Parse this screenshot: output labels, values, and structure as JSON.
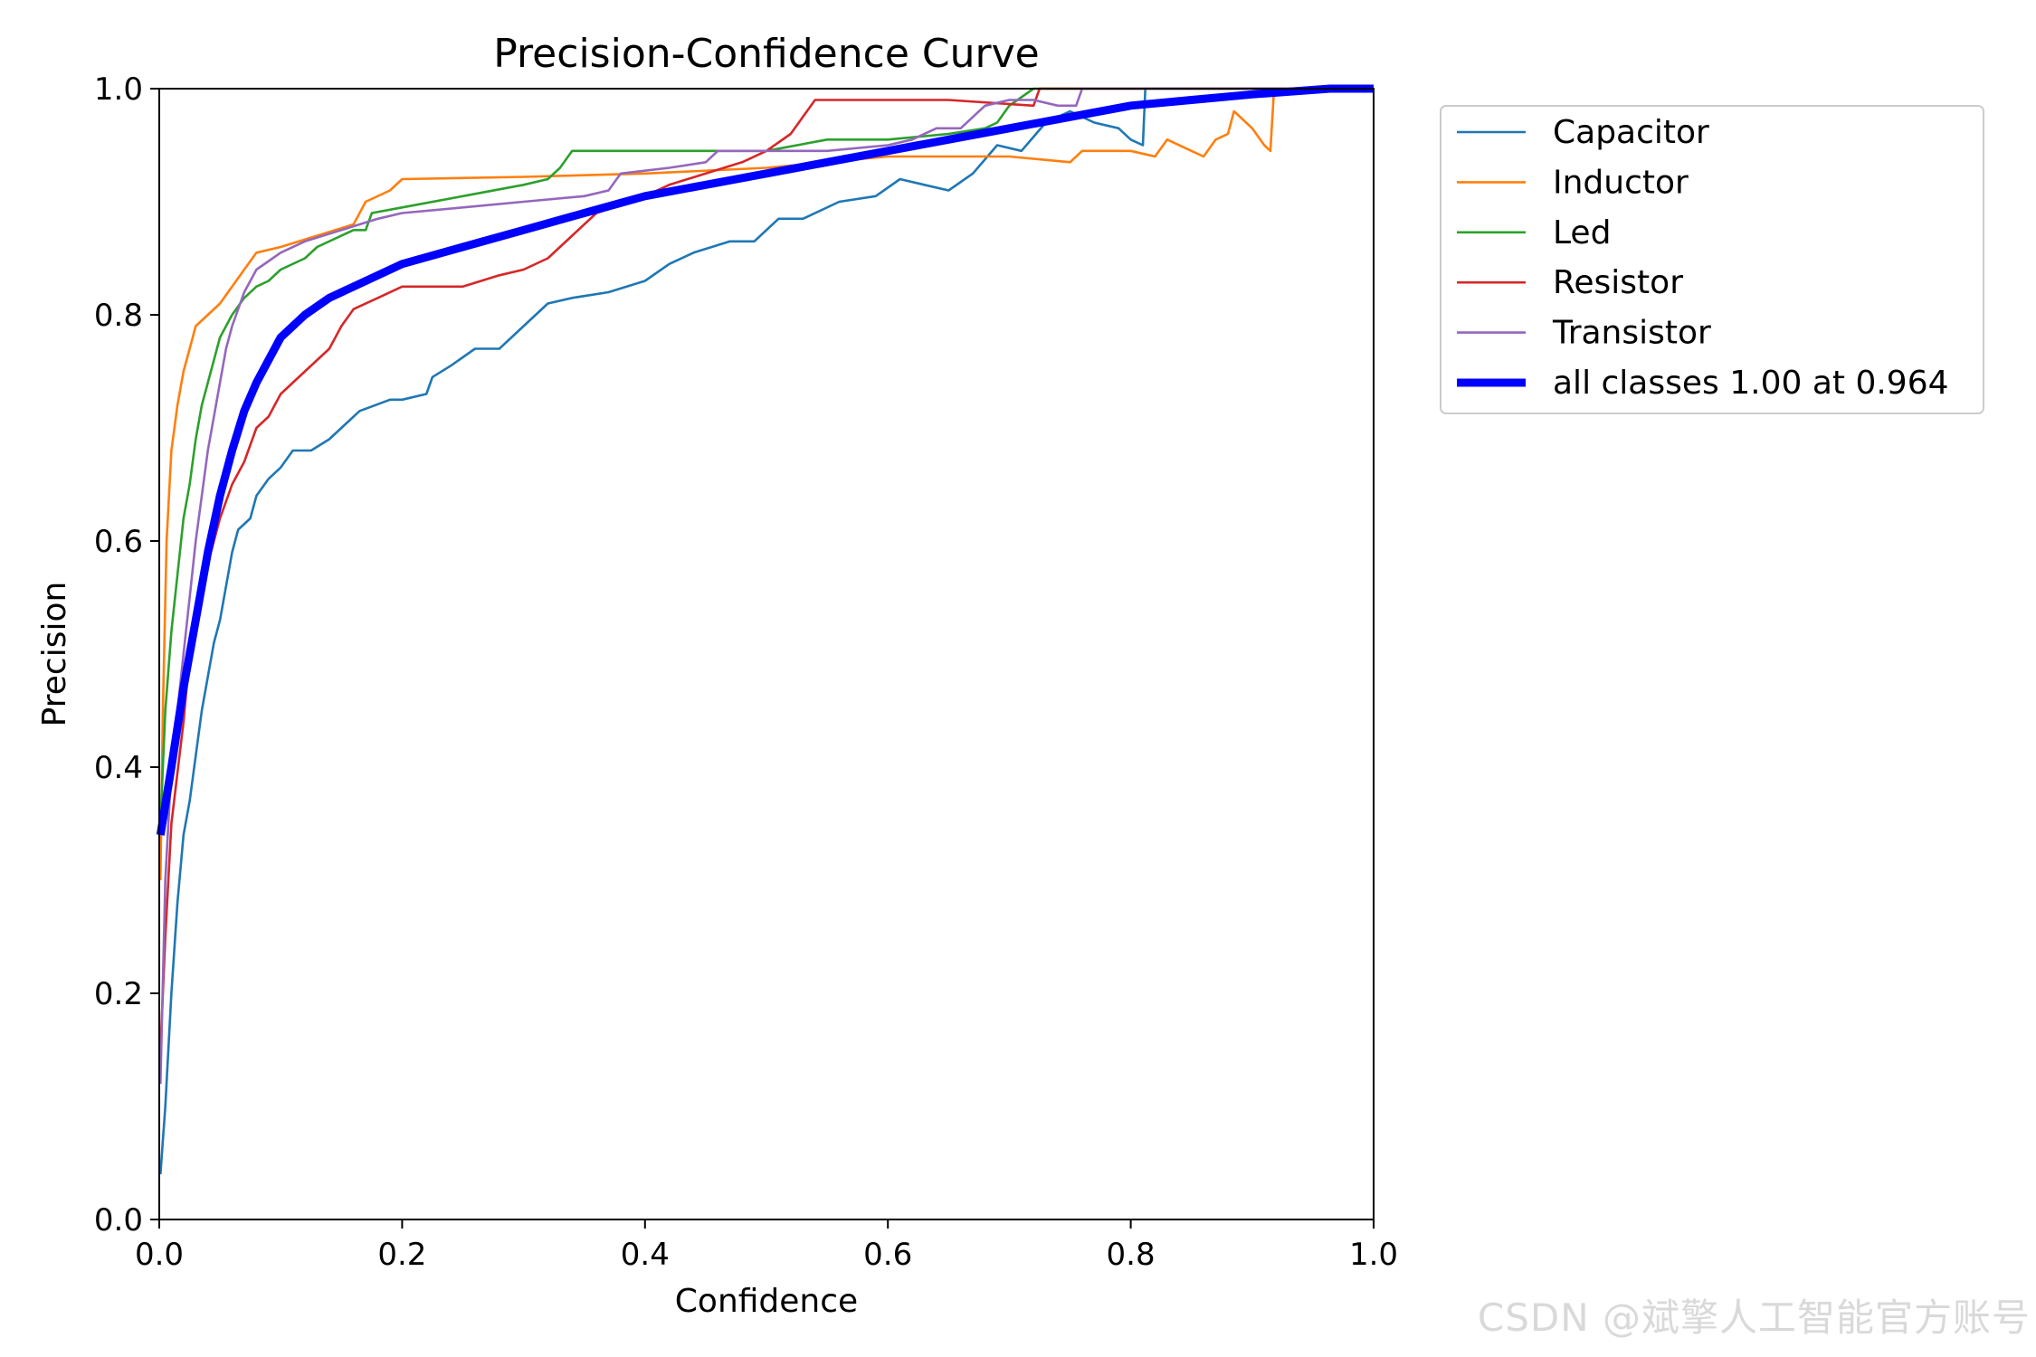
{
  "chart_data": {
    "type": "line",
    "title": "Precision-Confidence Curve",
    "xlabel": "Confidence",
    "ylabel": "Precision",
    "xlim": [
      0,
      1
    ],
    "ylim": [
      0,
      1
    ],
    "xticks": [
      "0.0",
      "0.2",
      "0.4",
      "0.6",
      "0.8",
      "1.0"
    ],
    "yticks": [
      "0.0",
      "0.2",
      "0.4",
      "0.6",
      "0.8",
      "1.0"
    ],
    "grid": false,
    "legend_position": "outside-right-top",
    "series": [
      {
        "name": "Capacitor",
        "color": "#1f77b4",
        "points": [
          [
            0.001,
            0.04
          ],
          [
            0.005,
            0.1
          ],
          [
            0.01,
            0.2
          ],
          [
            0.015,
            0.28
          ],
          [
            0.02,
            0.34
          ],
          [
            0.025,
            0.37
          ],
          [
            0.03,
            0.41
          ],
          [
            0.035,
            0.45
          ],
          [
            0.04,
            0.48
          ],
          [
            0.045,
            0.51
          ],
          [
            0.05,
            0.53
          ],
          [
            0.055,
            0.56
          ],
          [
            0.06,
            0.59
          ],
          [
            0.065,
            0.61
          ],
          [
            0.075,
            0.62
          ],
          [
            0.08,
            0.64
          ],
          [
            0.09,
            0.655
          ],
          [
            0.1,
            0.665
          ],
          [
            0.11,
            0.68
          ],
          [
            0.125,
            0.68
          ],
          [
            0.14,
            0.69
          ],
          [
            0.15,
            0.7
          ],
          [
            0.165,
            0.715
          ],
          [
            0.19,
            0.725
          ],
          [
            0.2,
            0.725
          ],
          [
            0.22,
            0.73
          ],
          [
            0.225,
            0.745
          ],
          [
            0.24,
            0.755
          ],
          [
            0.26,
            0.77
          ],
          [
            0.28,
            0.77
          ],
          [
            0.3,
            0.79
          ],
          [
            0.32,
            0.81
          ],
          [
            0.34,
            0.815
          ],
          [
            0.37,
            0.82
          ],
          [
            0.4,
            0.83
          ],
          [
            0.42,
            0.845
          ],
          [
            0.44,
            0.855
          ],
          [
            0.47,
            0.865
          ],
          [
            0.49,
            0.865
          ],
          [
            0.51,
            0.885
          ],
          [
            0.53,
            0.885
          ],
          [
            0.56,
            0.9
          ],
          [
            0.59,
            0.905
          ],
          [
            0.61,
            0.92
          ],
          [
            0.63,
            0.915
          ],
          [
            0.65,
            0.91
          ],
          [
            0.67,
            0.925
          ],
          [
            0.69,
            0.95
          ],
          [
            0.71,
            0.945
          ],
          [
            0.73,
            0.97
          ],
          [
            0.75,
            0.98
          ],
          [
            0.77,
            0.97
          ],
          [
            0.79,
            0.965
          ],
          [
            0.8,
            0.955
          ],
          [
            0.81,
            0.95
          ],
          [
            0.812,
            1.0
          ],
          [
            1.0,
            1.0
          ]
        ]
      },
      {
        "name": "Inductor",
        "color": "#ff7f0e",
        "points": [
          [
            0.001,
            0.3
          ],
          [
            0.003,
            0.45
          ],
          [
            0.006,
            0.6
          ],
          [
            0.01,
            0.68
          ],
          [
            0.015,
            0.72
          ],
          [
            0.02,
            0.75
          ],
          [
            0.025,
            0.77
          ],
          [
            0.03,
            0.79
          ],
          [
            0.04,
            0.8
          ],
          [
            0.05,
            0.81
          ],
          [
            0.06,
            0.825
          ],
          [
            0.07,
            0.84
          ],
          [
            0.08,
            0.855
          ],
          [
            0.1,
            0.86
          ],
          [
            0.13,
            0.87
          ],
          [
            0.16,
            0.88
          ],
          [
            0.17,
            0.9
          ],
          [
            0.19,
            0.91
          ],
          [
            0.2,
            0.92
          ],
          [
            0.3,
            0.922
          ],
          [
            0.4,
            0.925
          ],
          [
            0.5,
            0.93
          ],
          [
            0.6,
            0.94
          ],
          [
            0.7,
            0.94
          ],
          [
            0.75,
            0.935
          ],
          [
            0.76,
            0.945
          ],
          [
            0.8,
            0.945
          ],
          [
            0.82,
            0.94
          ],
          [
            0.83,
            0.955
          ],
          [
            0.85,
            0.945
          ],
          [
            0.86,
            0.94
          ],
          [
            0.87,
            0.955
          ],
          [
            0.88,
            0.96
          ],
          [
            0.885,
            0.98
          ],
          [
            0.895,
            0.97
          ],
          [
            0.9,
            0.965
          ],
          [
            0.91,
            0.95
          ],
          [
            0.915,
            0.945
          ],
          [
            0.918,
            1.0
          ],
          [
            1.0,
            1.0
          ]
        ]
      },
      {
        "name": "Led",
        "color": "#2ca02c",
        "points": [
          [
            0.001,
            0.35
          ],
          [
            0.005,
            0.45
          ],
          [
            0.01,
            0.52
          ],
          [
            0.015,
            0.57
          ],
          [
            0.02,
            0.62
          ],
          [
            0.025,
            0.65
          ],
          [
            0.03,
            0.69
          ],
          [
            0.035,
            0.72
          ],
          [
            0.04,
            0.74
          ],
          [
            0.05,
            0.78
          ],
          [
            0.06,
            0.8
          ],
          [
            0.07,
            0.815
          ],
          [
            0.08,
            0.825
          ],
          [
            0.09,
            0.83
          ],
          [
            0.1,
            0.84
          ],
          [
            0.12,
            0.85
          ],
          [
            0.13,
            0.86
          ],
          [
            0.16,
            0.875
          ],
          [
            0.17,
            0.875
          ],
          [
            0.175,
            0.89
          ],
          [
            0.2,
            0.895
          ],
          [
            0.25,
            0.905
          ],
          [
            0.3,
            0.915
          ],
          [
            0.32,
            0.92
          ],
          [
            0.33,
            0.93
          ],
          [
            0.34,
            0.945
          ],
          [
            0.5,
            0.945
          ],
          [
            0.55,
            0.955
          ],
          [
            0.6,
            0.955
          ],
          [
            0.65,
            0.96
          ],
          [
            0.68,
            0.965
          ],
          [
            0.69,
            0.97
          ],
          [
            0.7,
            0.985
          ],
          [
            0.72,
            1.0
          ],
          [
            1.0,
            1.0
          ]
        ]
      },
      {
        "name": "Resistor",
        "color": "#d62728",
        "points": [
          [
            0.001,
            0.15
          ],
          [
            0.005,
            0.25
          ],
          [
            0.01,
            0.35
          ],
          [
            0.02,
            0.44
          ],
          [
            0.025,
            0.5
          ],
          [
            0.03,
            0.54
          ],
          [
            0.035,
            0.56
          ],
          [
            0.04,
            0.58
          ],
          [
            0.045,
            0.6
          ],
          [
            0.05,
            0.62
          ],
          [
            0.06,
            0.65
          ],
          [
            0.07,
            0.67
          ],
          [
            0.08,
            0.7
          ],
          [
            0.09,
            0.71
          ],
          [
            0.1,
            0.73
          ],
          [
            0.12,
            0.75
          ],
          [
            0.14,
            0.77
          ],
          [
            0.15,
            0.79
          ],
          [
            0.16,
            0.805
          ],
          [
            0.18,
            0.815
          ],
          [
            0.2,
            0.825
          ],
          [
            0.25,
            0.825
          ],
          [
            0.28,
            0.835
          ],
          [
            0.3,
            0.84
          ],
          [
            0.32,
            0.85
          ],
          [
            0.34,
            0.87
          ],
          [
            0.36,
            0.89
          ],
          [
            0.4,
            0.905
          ],
          [
            0.42,
            0.915
          ],
          [
            0.45,
            0.925
          ],
          [
            0.48,
            0.935
          ],
          [
            0.5,
            0.945
          ],
          [
            0.52,
            0.96
          ],
          [
            0.54,
            0.99
          ],
          [
            0.6,
            0.99
          ],
          [
            0.65,
            0.99
          ],
          [
            0.72,
            0.985
          ],
          [
            0.725,
            1.0
          ],
          [
            1.0,
            1.0
          ]
        ]
      },
      {
        "name": "Transistor",
        "color": "#9467bd",
        "points": [
          [
            0.001,
            0.12
          ],
          [
            0.005,
            0.3
          ],
          [
            0.01,
            0.4
          ],
          [
            0.02,
            0.5
          ],
          [
            0.025,
            0.55
          ],
          [
            0.03,
            0.6
          ],
          [
            0.035,
            0.64
          ],
          [
            0.04,
            0.68
          ],
          [
            0.045,
            0.71
          ],
          [
            0.05,
            0.74
          ],
          [
            0.055,
            0.77
          ],
          [
            0.06,
            0.79
          ],
          [
            0.07,
            0.82
          ],
          [
            0.08,
            0.84
          ],
          [
            0.1,
            0.855
          ],
          [
            0.12,
            0.865
          ],
          [
            0.15,
            0.875
          ],
          [
            0.18,
            0.885
          ],
          [
            0.2,
            0.89
          ],
          [
            0.25,
            0.895
          ],
          [
            0.3,
            0.9
          ],
          [
            0.35,
            0.905
          ],
          [
            0.37,
            0.91
          ],
          [
            0.38,
            0.925
          ],
          [
            0.42,
            0.93
          ],
          [
            0.45,
            0.935
          ],
          [
            0.46,
            0.945
          ],
          [
            0.5,
            0.945
          ],
          [
            0.55,
            0.945
          ],
          [
            0.6,
            0.95
          ],
          [
            0.62,
            0.955
          ],
          [
            0.64,
            0.965
          ],
          [
            0.66,
            0.965
          ],
          [
            0.67,
            0.975
          ],
          [
            0.68,
            0.985
          ],
          [
            0.7,
            0.99
          ],
          [
            0.72,
            0.99
          ],
          [
            0.74,
            0.985
          ],
          [
            0.755,
            0.985
          ],
          [
            0.76,
            1.0
          ],
          [
            1.0,
            1.0
          ]
        ]
      },
      {
        "name": "all classes 1.00 at 0.964",
        "color": "#0000ff",
        "bold": true,
        "points": [
          [
            0.001,
            0.34
          ],
          [
            0.01,
            0.4
          ],
          [
            0.02,
            0.47
          ],
          [
            0.03,
            0.53
          ],
          [
            0.04,
            0.59
          ],
          [
            0.05,
            0.64
          ],
          [
            0.06,
            0.68
          ],
          [
            0.07,
            0.715
          ],
          [
            0.08,
            0.74
          ],
          [
            0.09,
            0.76
          ],
          [
            0.1,
            0.78
          ],
          [
            0.12,
            0.8
          ],
          [
            0.14,
            0.815
          ],
          [
            0.16,
            0.825
          ],
          [
            0.2,
            0.845
          ],
          [
            0.25,
            0.86
          ],
          [
            0.3,
            0.875
          ],
          [
            0.35,
            0.89
          ],
          [
            0.4,
            0.905
          ],
          [
            0.45,
            0.915
          ],
          [
            0.5,
            0.925
          ],
          [
            0.55,
            0.935
          ],
          [
            0.6,
            0.945
          ],
          [
            0.65,
            0.955
          ],
          [
            0.7,
            0.965
          ],
          [
            0.75,
            0.975
          ],
          [
            0.8,
            0.985
          ],
          [
            0.85,
            0.99
          ],
          [
            0.9,
            0.995
          ],
          [
            0.964,
            1.0
          ],
          [
            1.0,
            1.0
          ]
        ]
      }
    ]
  },
  "watermark": "CSDN @斌擎人工智能官方账号"
}
